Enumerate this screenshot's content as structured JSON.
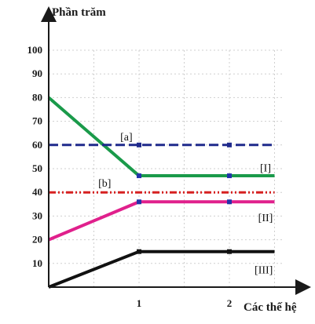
{
  "chart_data": {
    "type": "line",
    "ylabel": "Phần trăm",
    "xlabel": "Các thế hệ",
    "ylim": [
      0,
      100
    ],
    "xlim": [
      0,
      2.6
    ],
    "x_ticks": [
      {
        "value": 1,
        "label": "1"
      },
      {
        "value": 2,
        "label": "2"
      }
    ],
    "y_ticks": [
      {
        "value": 10,
        "label": "10"
      },
      {
        "value": 20,
        "label": "20"
      },
      {
        "value": 30,
        "label": "30"
      },
      {
        "value": 40,
        "label": "40"
      },
      {
        "value": 50,
        "label": "50"
      },
      {
        "value": 60,
        "label": "60"
      },
      {
        "value": 70,
        "label": "70"
      },
      {
        "value": 80,
        "label": "80"
      },
      {
        "value": 90,
        "label": "90"
      },
      {
        "value": 100,
        "label": "100"
      }
    ],
    "grid": true,
    "series": [
      {
        "name": "[I]",
        "color": "#1a9a4a",
        "style": "solid",
        "points": [
          [
            0,
            80
          ],
          [
            1,
            47
          ],
          [
            2,
            47
          ],
          [
            2.5,
            47
          ]
        ],
        "markers": [
          [
            1,
            47
          ],
          [
            2,
            47
          ]
        ],
        "marker_color": "#2233aa"
      },
      {
        "name": "[II]",
        "color": "#e0208c",
        "style": "solid",
        "points": [
          [
            0,
            20
          ],
          [
            1,
            36
          ],
          [
            2,
            36
          ],
          [
            2.5,
            36
          ]
        ],
        "markers": [
          [
            1,
            36
          ],
          [
            2,
            36
          ]
        ],
        "marker_color": "#2233aa"
      },
      {
        "name": "[III]",
        "color": "#111111",
        "style": "solid",
        "points": [
          [
            0,
            0
          ],
          [
            1,
            15
          ],
          [
            2,
            15
          ],
          [
            2.5,
            15
          ]
        ],
        "markers": [
          [
            1,
            15
          ],
          [
            2,
            15
          ]
        ],
        "marker_color": "#111111"
      },
      {
        "name": "[a]",
        "color": "#1f2a8c",
        "style": "dashed",
        "points": [
          [
            0,
            60
          ],
          [
            2.5,
            60
          ]
        ],
        "markers": [
          [
            1,
            60
          ],
          [
            2,
            60
          ]
        ],
        "marker_color": "#1f2a8c"
      },
      {
        "name": "[b]",
        "color": "#d62020",
        "style": "dashdot",
        "points": [
          [
            0,
            40
          ],
          [
            2.5,
            40
          ]
        ],
        "markers": [],
        "marker_color": "#d62020"
      }
    ],
    "annotations": [
      {
        "text": "[a]",
        "x": 0.86,
        "y": 63.5
      },
      {
        "text": "[b]",
        "x": 0.62,
        "y": 44
      },
      {
        "text": "[I]",
        "x": 2.4,
        "y": 50.5
      },
      {
        "text": "[II]",
        "x": 2.4,
        "y": 29.5
      },
      {
        "text": "[III]",
        "x": 2.38,
        "y": 7.5
      }
    ]
  }
}
